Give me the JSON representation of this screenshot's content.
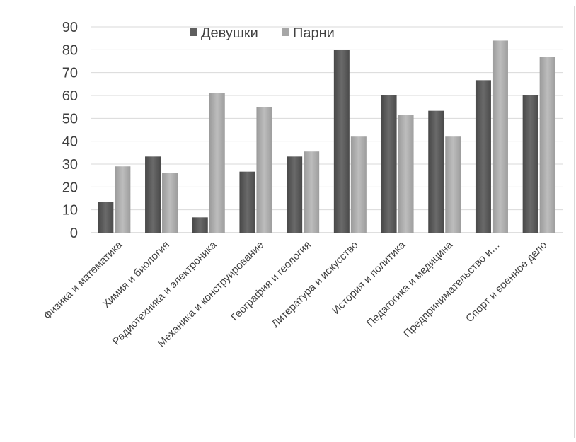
{
  "chart_data": {
    "type": "bar",
    "title": "",
    "xlabel": "",
    "ylabel": "",
    "ylim": [
      0,
      90
    ],
    "yticks": [
      0,
      10,
      20,
      30,
      40,
      50,
      60,
      70,
      80,
      90
    ],
    "grid": true,
    "legend_position": "top-center",
    "categories": [
      "Физика и математика",
      "Химия и биология",
      "Радиотехника и электроника",
      "Механика и конструирование",
      "География и геология",
      "Литература и искусство",
      "История и политика",
      "Педагогика и медицина",
      "Предпринимательство и…",
      "Спорт и военное дело"
    ],
    "series": [
      {
        "name": "Девушки",
        "color": "#5f5f5f",
        "values": [
          13.3,
          33.3,
          6.7,
          26.7,
          33.3,
          80,
          60,
          53.3,
          66.7,
          60
        ]
      },
      {
        "name": "Парни",
        "color": "#a6a6a6",
        "values": [
          29,
          26,
          61,
          55,
          35.5,
          42,
          51.6,
          42,
          84,
          77
        ]
      }
    ]
  }
}
